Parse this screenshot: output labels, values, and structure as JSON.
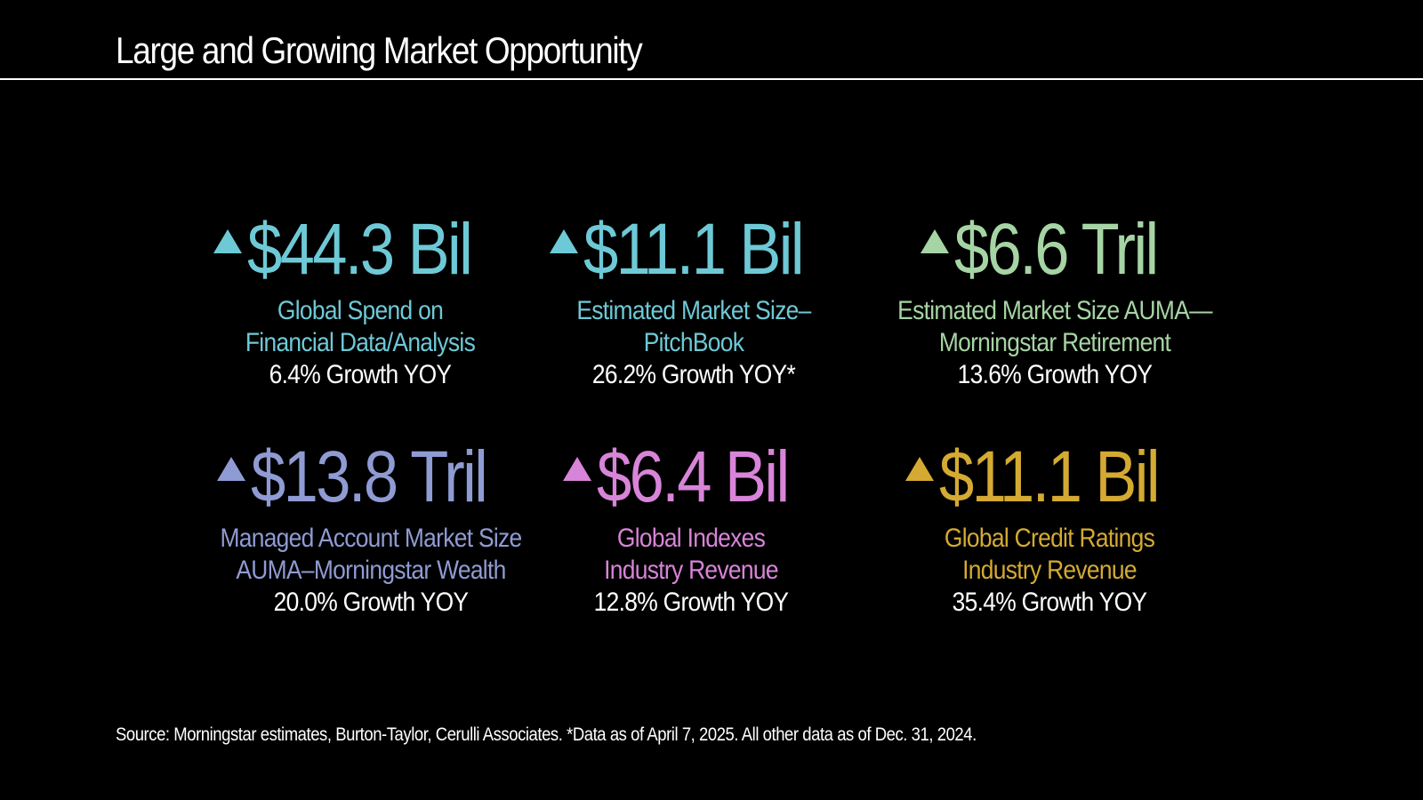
{
  "slide": {
    "title": "Large and Growing Market Opportunity",
    "source": "Source: Morningstar estimates, Burton-Taylor, Cerulli Associates. *Data as of April 7, 2025. All other data as of Dec. 31, 2024."
  },
  "stats": [
    {
      "value": "$44.3 Bil",
      "label_line1": "Global Spend on",
      "label_line2": "Financial Data/Analysis",
      "growth": "6.4% Growth YOY",
      "color": "#6ec9d6",
      "icon": "up-triangle-icon"
    },
    {
      "value": "$11.1 Bil",
      "label_line1": "Estimated Market Size–",
      "label_line2": "PitchBook",
      "growth": "26.2% Growth YOY*",
      "color": "#6ec9d6",
      "icon": "up-triangle-icon"
    },
    {
      "value": "$6.6 Tril",
      "label_line1": "Estimated Market Size AUMA—",
      "label_line2": "Morningstar Retirement",
      "growth": "13.6% Growth YOY",
      "color": "#a6d4a4",
      "icon": "up-triangle-icon"
    },
    {
      "value": "$13.8 Tril",
      "label_line1": "Managed Account Market Size",
      "label_line2": "AUMA–Morningstar Wealth",
      "growth": "20.0% Growth YOY",
      "color": "#8f9bd3",
      "icon": "up-triangle-icon"
    },
    {
      "value": "$6.4 Bil",
      "label_line1": "Global Indexes",
      "label_line2": "Industry Revenue",
      "growth": "12.8% Growth YOY",
      "color": "#d884d8",
      "icon": "up-triangle-icon"
    },
    {
      "value": "$11.1 Bil",
      "label_line1": "Global Credit Ratings",
      "label_line2": "Industry Revenue",
      "growth": "35.4% Growth YOY",
      "color": "#d4aa33",
      "icon": "up-triangle-icon"
    }
  ]
}
